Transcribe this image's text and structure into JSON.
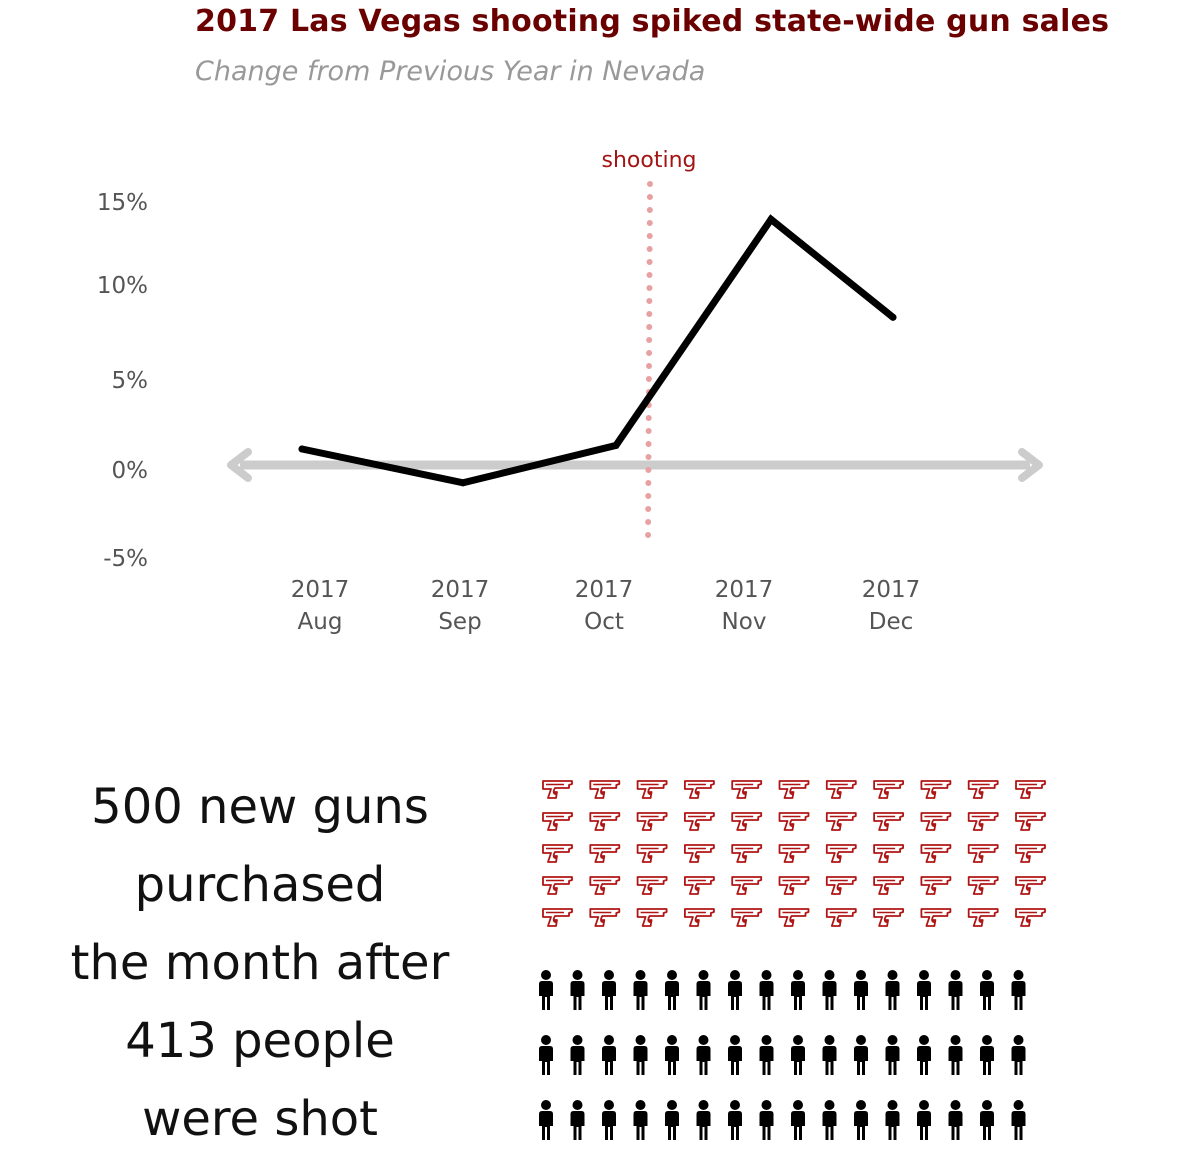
{
  "title": "2017 Las Vegas shooting spiked state-wide gun sales",
  "subtitle": "Change from Previous Year in Nevada",
  "caption_lines": [
    "500 new guns",
    "purchased",
    "the month after",
    "413 people",
    "were shot"
  ],
  "colors": {
    "title": "#6b0000",
    "gun_icon": "#b01515",
    "shooting_line": "#e8a0a0",
    "axis": "#cccccc",
    "person_icon": "#000000"
  },
  "chart_data": {
    "type": "line",
    "x": [
      "2017 Aug",
      "2017 Sep",
      "2017 Oct",
      "2017 Nov",
      "2017 Dec"
    ],
    "x_labels": [
      {
        "year": "2017",
        "month": "Aug"
      },
      {
        "year": "2017",
        "month": "Sep"
      },
      {
        "year": "2017",
        "month": "Oct"
      },
      {
        "year": "2017",
        "month": "Nov"
      },
      {
        "year": "2017",
        "month": "Dec"
      }
    ],
    "values": [
      0.9,
      -1.0,
      1.1,
      13.8,
      8.3
    ],
    "y_ticks": [
      15,
      10,
      5,
      0,
      -5
    ],
    "y_tick_labels": [
      "15%",
      "10%",
      "5%",
      "0%",
      "-5%"
    ],
    "ylim": [
      -5,
      15
    ],
    "annotation": {
      "label": "shooting",
      "x_position": "2017 Oct 1"
    },
    "grid": false
  },
  "pictogram": {
    "gun_icon": "pistol-icon",
    "gun_rows": 5,
    "gun_cols": 11,
    "person_icon": "person-icon",
    "person_rows": 3,
    "person_cols": 16
  }
}
